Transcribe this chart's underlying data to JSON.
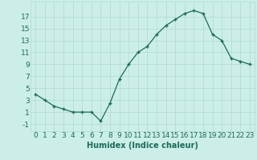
{
  "x": [
    0,
    1,
    2,
    3,
    4,
    5,
    6,
    7,
    8,
    9,
    10,
    11,
    12,
    13,
    14,
    15,
    16,
    17,
    18,
    19,
    20,
    21,
    22,
    23
  ],
  "y": [
    4.0,
    3.0,
    2.0,
    1.5,
    1.0,
    1.0,
    1.0,
    -0.5,
    2.5,
    6.5,
    9.0,
    11.0,
    12.0,
    14.0,
    15.5,
    16.5,
    17.5,
    18.0,
    17.5,
    14.0,
    13.0,
    10.0,
    9.5,
    9.0
  ],
  "xlabel": "Humidex (Indice chaleur)",
  "xlim": [
    -0.5,
    23.5
  ],
  "ylim": [
    -2.2,
    19.5
  ],
  "yticks": [
    -1,
    1,
    3,
    5,
    7,
    9,
    11,
    13,
    15,
    17
  ],
  "xticks": [
    0,
    1,
    2,
    3,
    4,
    5,
    6,
    7,
    8,
    9,
    10,
    11,
    12,
    13,
    14,
    15,
    16,
    17,
    18,
    19,
    20,
    21,
    22,
    23
  ],
  "line_color": "#1a6b5a",
  "marker": "+",
  "bg_color": "#cceee8",
  "grid_color": "#b0d8d2",
  "text_color": "#1a6b5a",
  "label_fontsize": 7,
  "tick_fontsize": 6.5
}
